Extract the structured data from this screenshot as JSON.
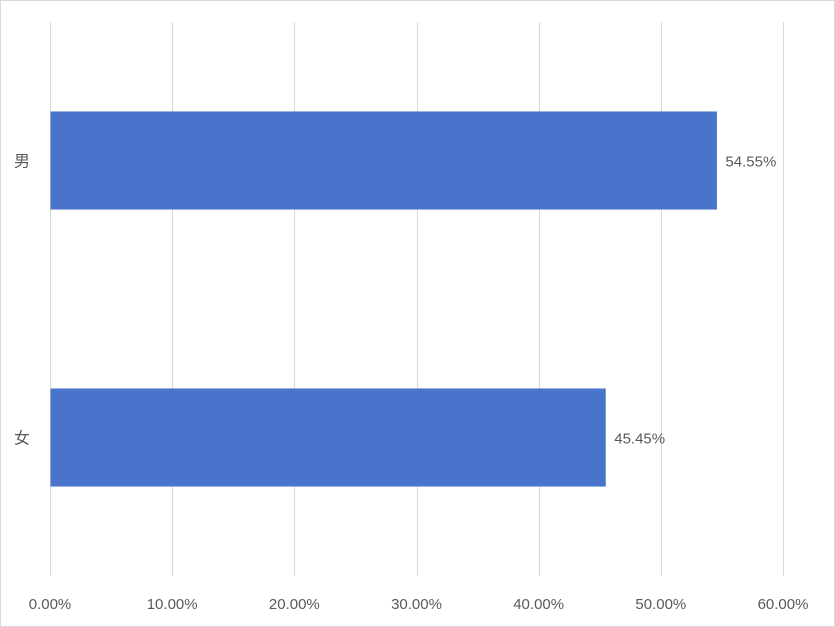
{
  "chart_data": {
    "type": "bar",
    "orientation": "horizontal",
    "categories": [
      "男",
      "女"
    ],
    "values": [
      54.55,
      45.45
    ],
    "data_labels": [
      "54.55%",
      "45.45%"
    ],
    "xlim": [
      0,
      60
    ],
    "x_ticks": [
      0,
      10,
      20,
      30,
      40,
      50,
      60
    ],
    "x_tick_labels": [
      "0.00%",
      "10.00%",
      "20.00%",
      "30.00%",
      "40.00%",
      "50.00%",
      "60.00%"
    ],
    "grid": "vertical",
    "legend": "none",
    "bar_color": "#4874cb",
    "grid_color": "#d9d9d9",
    "title": "",
    "xlabel": "",
    "ylabel": ""
  }
}
